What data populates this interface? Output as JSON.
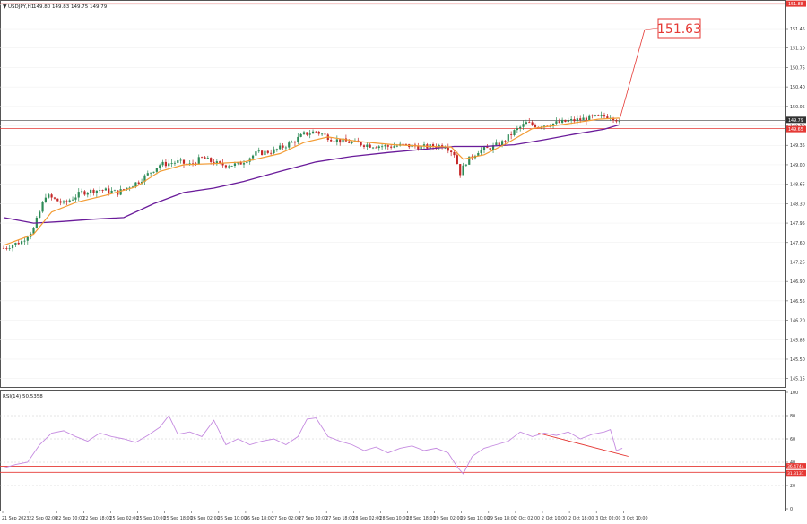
{
  "header": {
    "symbol_label": "USDJPY,H1",
    "ohlc_label": "149.80 149.83 149.75 149.79",
    "rsi_label": "RSI(14) 50.5358"
  },
  "annotation": {
    "target_label": "151.63"
  },
  "price_axis": {
    "ticks": [
      "151.88",
      "151.45",
      "151.10",
      "150.75",
      "150.40",
      "150.05",
      "149.70",
      "149.35",
      "149.00",
      "148.65",
      "148.30",
      "147.95",
      "147.60",
      "147.25",
      "146.90",
      "146.55",
      "146.20",
      "145.85",
      "145.50",
      "145.15"
    ],
    "current_label": "149.79",
    "level_label": "149.65"
  },
  "rsi_axis": {
    "ticks": [
      "100",
      "80",
      "60",
      "40",
      "20",
      "0"
    ],
    "level_label_1": "36.4744",
    "level_label_2": "31.3131"
  },
  "time_axis": {
    "labels": [
      "21 Sep 2023",
      "22 Sep 02:00",
      "22 Sep 10:00",
      "22 Sep 18:00",
      "25 Sep 02:00",
      "25 Sep 10:00",
      "25 Sep 18:00",
      "26 Sep 02:00",
      "26 Sep 10:00",
      "26 Sep 18:00",
      "27 Sep 02:00",
      "27 Sep 10:00",
      "27 Sep 18:00",
      "28 Sep 02:00",
      "28 Sep 10:00",
      "28 Sep 18:00",
      "29 Sep 02:00",
      "29 Sep 10:00",
      "29 Sep 18:00",
      "2 Oct 02:00",
      "2 Oct 10:00",
      "2 Oct 18:00",
      "3 Oct 02:00",
      "3 Oct 10:00"
    ]
  },
  "colors": {
    "bull": "#2e8b57",
    "bear": "#c62828",
    "ema_fast": "#f39c34",
    "ema_slow": "#6a1b9a",
    "rsi": "#c58be0",
    "level": "#e53935",
    "grid": "#c8c8c8"
  },
  "chart_data": [
    {
      "type": "candlestick",
      "price_scale": {
        "min": 145.0,
        "max": 151.95
      },
      "price_ticks": [
        151.88,
        151.45,
        151.1,
        150.75,
        150.4,
        150.05,
        149.7,
        149.35,
        149.0,
        148.65,
        148.3,
        147.95,
        147.6,
        147.25,
        146.9,
        146.55,
        146.2,
        145.85,
        145.5,
        145.15
      ],
      "anchor_points": [
        {
          "i": 0,
          "p": 147.5
        },
        {
          "i": 6,
          "p": 147.62
        },
        {
          "i": 10,
          "p": 147.85
        },
        {
          "i": 14,
          "p": 148.45
        },
        {
          "i": 20,
          "p": 148.3
        },
        {
          "i": 26,
          "p": 148.5
        },
        {
          "i": 32,
          "p": 148.55
        },
        {
          "i": 38,
          "p": 148.5
        },
        {
          "i": 45,
          "p": 148.7
        },
        {
          "i": 52,
          "p": 149.0
        },
        {
          "i": 58,
          "p": 149.05
        },
        {
          "i": 62,
          "p": 149.0
        },
        {
          "i": 66,
          "p": 149.12
        },
        {
          "i": 72,
          "p": 149.0
        },
        {
          "i": 78,
          "p": 149.0
        },
        {
          "i": 84,
          "p": 149.2
        },
        {
          "i": 90,
          "p": 149.25
        },
        {
          "i": 96,
          "p": 149.4
        },
        {
          "i": 100,
          "p": 149.55
        },
        {
          "i": 104,
          "p": 149.6
        },
        {
          "i": 110,
          "p": 149.45
        },
        {
          "i": 116,
          "p": 149.4
        },
        {
          "i": 122,
          "p": 149.35
        },
        {
          "i": 128,
          "p": 149.33
        },
        {
          "i": 133,
          "p": 149.35
        },
        {
          "i": 140,
          "p": 149.32
        },
        {
          "i": 147,
          "p": 149.35
        },
        {
          "i": 150,
          "p": 149.2
        },
        {
          "i": 152,
          "p": 148.85
        },
        {
          "i": 154,
          "p": 149.05
        },
        {
          "i": 158,
          "p": 149.25
        },
        {
          "i": 162,
          "p": 149.3
        },
        {
          "i": 166,
          "p": 149.4
        },
        {
          "i": 170,
          "p": 149.6
        },
        {
          "i": 174,
          "p": 149.75
        },
        {
          "i": 178,
          "p": 149.7
        },
        {
          "i": 184,
          "p": 149.75
        },
        {
          "i": 190,
          "p": 149.8
        },
        {
          "i": 196,
          "p": 149.85
        },
        {
          "i": 202,
          "p": 149.88
        },
        {
          "i": 205,
          "p": 149.79
        }
      ],
      "ema_fast_points": [
        {
          "i": 0,
          "p": 147.55
        },
        {
          "i": 10,
          "p": 147.75
        },
        {
          "i": 16,
          "p": 148.15
        },
        {
          "i": 24,
          "p": 148.32
        },
        {
          "i": 34,
          "p": 148.45
        },
        {
          "i": 44,
          "p": 148.6
        },
        {
          "i": 52,
          "p": 148.88
        },
        {
          "i": 60,
          "p": 149.0
        },
        {
          "i": 70,
          "p": 149.02
        },
        {
          "i": 80,
          "p": 149.05
        },
        {
          "i": 92,
          "p": 149.2
        },
        {
          "i": 100,
          "p": 149.4
        },
        {
          "i": 108,
          "p": 149.5
        },
        {
          "i": 118,
          "p": 149.42
        },
        {
          "i": 130,
          "p": 149.36
        },
        {
          "i": 142,
          "p": 149.33
        },
        {
          "i": 149,
          "p": 149.32
        },
        {
          "i": 153,
          "p": 149.1
        },
        {
          "i": 160,
          "p": 149.18
        },
        {
          "i": 168,
          "p": 149.4
        },
        {
          "i": 176,
          "p": 149.65
        },
        {
          "i": 188,
          "p": 149.74
        },
        {
          "i": 198,
          "p": 149.82
        },
        {
          "i": 205,
          "p": 149.84
        }
      ],
      "ema_slow_points": [
        {
          "i": 0,
          "p": 148.05
        },
        {
          "i": 10,
          "p": 147.95
        },
        {
          "i": 20,
          "p": 147.98
        },
        {
          "i": 30,
          "p": 148.02
        },
        {
          "i": 40,
          "p": 148.05
        },
        {
          "i": 50,
          "p": 148.3
        },
        {
          "i": 60,
          "p": 148.5
        },
        {
          "i": 70,
          "p": 148.58
        },
        {
          "i": 80,
          "p": 148.7
        },
        {
          "i": 92,
          "p": 148.88
        },
        {
          "i": 104,
          "p": 149.05
        },
        {
          "i": 116,
          "p": 149.15
        },
        {
          "i": 128,
          "p": 149.22
        },
        {
          "i": 140,
          "p": 149.28
        },
        {
          "i": 150,
          "p": 149.33
        },
        {
          "i": 160,
          "p": 149.33
        },
        {
          "i": 170,
          "p": 149.36
        },
        {
          "i": 180,
          "p": 149.45
        },
        {
          "i": 190,
          "p": 149.55
        },
        {
          "i": 200,
          "p": 149.64
        },
        {
          "i": 205,
          "p": 149.72
        }
      ],
      "candle_count": 206,
      "horizontal_levels": [
        151.9,
        149.8,
        149.65
      ],
      "forecast_line": {
        "from_i": 205,
        "from_p": 149.8,
        "to_i": 212,
        "to_p": 151.63
      }
    },
    {
      "type": "line",
      "name": "RSI(14)",
      "ylim": [
        0,
        100
      ],
      "y_ticks": [
        100,
        80,
        60,
        40,
        20,
        0
      ],
      "levels": [
        36.4744,
        31.3131
      ],
      "points": [
        {
          "i": 0,
          "v": 35
        },
        {
          "i": 4,
          "v": 38
        },
        {
          "i": 8,
          "v": 40
        },
        {
          "i": 12,
          "v": 55
        },
        {
          "i": 16,
          "v": 65
        },
        {
          "i": 20,
          "v": 67
        },
        {
          "i": 24,
          "v": 62
        },
        {
          "i": 28,
          "v": 58
        },
        {
          "i": 32,
          "v": 65
        },
        {
          "i": 36,
          "v": 62
        },
        {
          "i": 40,
          "v": 60
        },
        {
          "i": 44,
          "v": 57
        },
        {
          "i": 48,
          "v": 63
        },
        {
          "i": 52,
          "v": 70
        },
        {
          "i": 55,
          "v": 80
        },
        {
          "i": 58,
          "v": 64
        },
        {
          "i": 62,
          "v": 66
        },
        {
          "i": 66,
          "v": 62
        },
        {
          "i": 70,
          "v": 76
        },
        {
          "i": 74,
          "v": 55
        },
        {
          "i": 78,
          "v": 60
        },
        {
          "i": 82,
          "v": 55
        },
        {
          "i": 86,
          "v": 58
        },
        {
          "i": 90,
          "v": 60
        },
        {
          "i": 94,
          "v": 55
        },
        {
          "i": 98,
          "v": 62
        },
        {
          "i": 101,
          "v": 77
        },
        {
          "i": 104,
          "v": 78
        },
        {
          "i": 108,
          "v": 62
        },
        {
          "i": 112,
          "v": 58
        },
        {
          "i": 116,
          "v": 55
        },
        {
          "i": 120,
          "v": 50
        },
        {
          "i": 124,
          "v": 53
        },
        {
          "i": 128,
          "v": 48
        },
        {
          "i": 132,
          "v": 52
        },
        {
          "i": 136,
          "v": 54
        },
        {
          "i": 140,
          "v": 50
        },
        {
          "i": 144,
          "v": 52
        },
        {
          "i": 148,
          "v": 48
        },
        {
          "i": 151,
          "v": 36
        },
        {
          "i": 153,
          "v": 30
        },
        {
          "i": 156,
          "v": 45
        },
        {
          "i": 160,
          "v": 52
        },
        {
          "i": 164,
          "v": 55
        },
        {
          "i": 168,
          "v": 58
        },
        {
          "i": 172,
          "v": 66
        },
        {
          "i": 176,
          "v": 62
        },
        {
          "i": 180,
          "v": 65
        },
        {
          "i": 184,
          "v": 63
        },
        {
          "i": 188,
          "v": 66
        },
        {
          "i": 192,
          "v": 60
        },
        {
          "i": 196,
          "v": 64
        },
        {
          "i": 200,
          "v": 66
        },
        {
          "i": 202,
          "v": 68
        },
        {
          "i": 204,
          "v": 50
        },
        {
          "i": 206,
          "v": 52
        }
      ],
      "divergence_line": {
        "from_i": 178,
        "from_v": 65,
        "to_i": 208,
        "to_v": 45
      }
    }
  ]
}
